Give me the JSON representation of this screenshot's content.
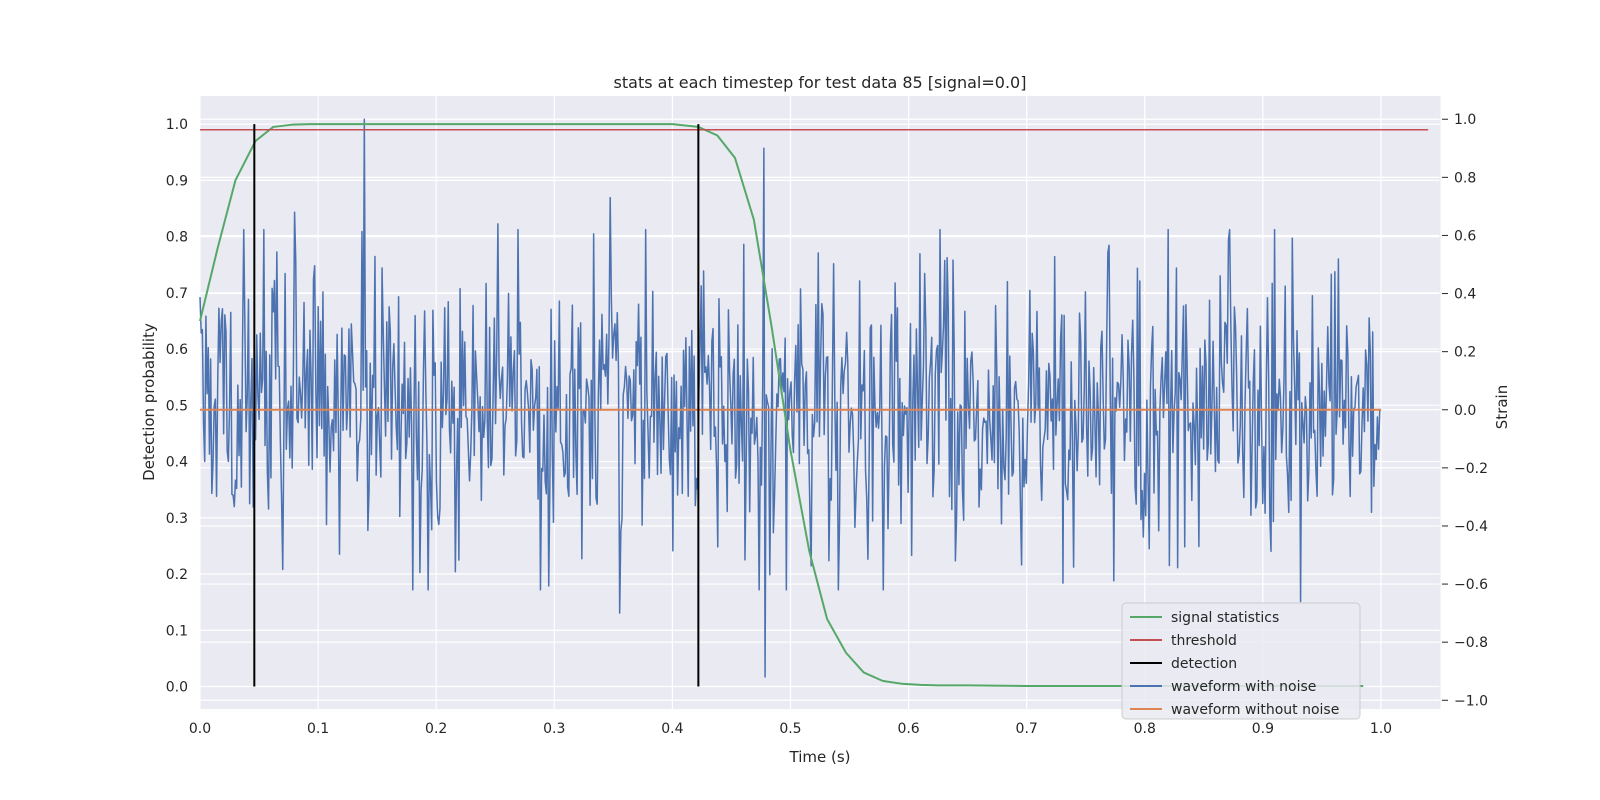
{
  "chart_data": {
    "type": "line",
    "title": "stats at each timestep for test data 85 [signal=0.0]",
    "xlabel": "Time (s)",
    "ylabel": "Detection probability",
    "ylabel_right": "Strain",
    "xlim": [
      0.0,
      1.05
    ],
    "ylim": [
      -0.04,
      1.05
    ],
    "ylim_right": [
      -1.03,
      1.08
    ],
    "xticks": [
      "0.0",
      "0.1",
      "0.2",
      "0.3",
      "0.4",
      "0.5",
      "0.6",
      "0.7",
      "0.8",
      "0.9",
      "1.0"
    ],
    "yticks": [
      "0.0",
      "0.1",
      "0.2",
      "0.3",
      "0.4",
      "0.5",
      "0.6",
      "0.7",
      "0.8",
      "0.9",
      "1.0"
    ],
    "yticks_right": [
      "−1.0",
      "−0.8",
      "−0.6",
      "−0.4",
      "−0.2",
      "0.0",
      "0.2",
      "0.4",
      "0.6",
      "0.8",
      "1.0"
    ],
    "grid": true,
    "legend_position": "lower-right",
    "series": [
      {
        "name": "signal statistics",
        "color": "#55a868",
        "axis": "left",
        "x": [
          0.0,
          0.015,
          0.03,
          0.047,
          0.062,
          0.078,
          0.094,
          0.11,
          0.2,
          0.3,
          0.4,
          0.422,
          0.438,
          0.453,
          0.469,
          0.484,
          0.5,
          0.516,
          0.531,
          0.547,
          0.562,
          0.578,
          0.594,
          0.61,
          0.625,
          0.65,
          0.7,
          0.8,
          0.9,
          0.985
        ],
        "y": [
          0.65,
          0.78,
          0.9,
          0.97,
          0.995,
          0.999,
          1.0,
          1.0,
          1.0,
          1.0,
          1.0,
          0.995,
          0.98,
          0.94,
          0.83,
          0.64,
          0.42,
          0.24,
          0.12,
          0.06,
          0.025,
          0.01,
          0.005,
          0.003,
          0.002,
          0.002,
          0.001,
          0.001,
          0.001,
          0.001
        ]
      },
      {
        "name": "threshold",
        "color": "#c44e52",
        "axis": "left",
        "x": [
          0.0,
          1.04
        ],
        "y": [
          0.99,
          0.99
        ]
      },
      {
        "name": "detection",
        "color": "#000000",
        "axis": "left",
        "segments": [
          {
            "x": 0.046,
            "y": [
              0.0,
              1.0
            ]
          },
          {
            "x": 0.422,
            "y": [
              0.0,
              1.0
            ]
          }
        ]
      },
      {
        "name": "waveform with noise",
        "color": "#4c72b0",
        "axis": "right",
        "samples": 1000,
        "x_range": [
          0.0,
          1.0
        ],
        "seed": 85,
        "std": 0.24,
        "notable_points": [
          {
            "x": 0.139,
            "y": 1.0
          },
          {
            "x": 0.08,
            "y": 0.68
          },
          {
            "x": 0.252,
            "y": 0.64
          },
          {
            "x": 0.347,
            "y": 0.73
          },
          {
            "x": 0.355,
            "y": -0.7
          },
          {
            "x": 0.477,
            "y": 0.9
          },
          {
            "x": 0.478,
            "y": -0.92
          },
          {
            "x": 0.932,
            "y": -0.66
          },
          {
            "x": 0.82,
            "y": 0.62
          },
          {
            "x": 0.07,
            "y": -0.55
          },
          {
            "x": 0.186,
            "y": -0.56
          },
          {
            "x": 0.64,
            "y": -0.52
          }
        ]
      },
      {
        "name": "waveform without noise",
        "color": "#dd8452",
        "axis": "right",
        "x": [
          0.0,
          1.0
        ],
        "y": [
          0.0,
          0.0
        ]
      }
    ]
  }
}
